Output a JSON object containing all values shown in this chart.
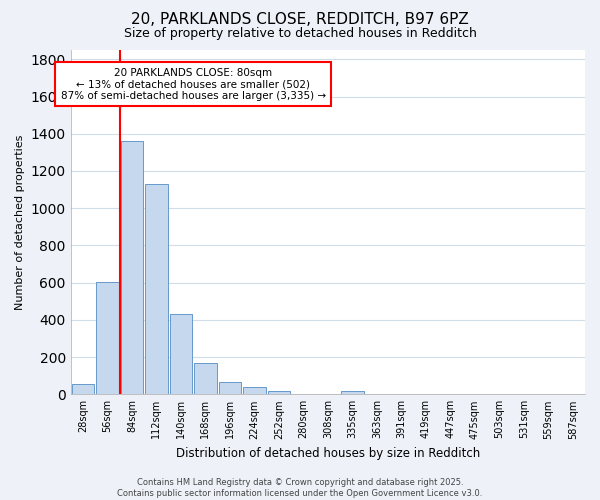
{
  "title_line1": "20, PARKLANDS CLOSE, REDDITCH, B97 6PZ",
  "title_line2": "Size of property relative to detached houses in Redditch",
  "xlabel": "Distribution of detached houses by size in Redditch",
  "ylabel": "Number of detached properties",
  "categories": [
    "28sqm",
    "56sqm",
    "84sqm",
    "112sqm",
    "140sqm",
    "168sqm",
    "196sqm",
    "224sqm",
    "252sqm",
    "280sqm",
    "308sqm",
    "335sqm",
    "363sqm",
    "391sqm",
    "419sqm",
    "447sqm",
    "475sqm",
    "503sqm",
    "531sqm",
    "559sqm",
    "587sqm"
  ],
  "values": [
    55,
    605,
    1360,
    1130,
    430,
    170,
    65,
    40,
    20,
    0,
    0,
    20,
    0,
    0,
    0,
    0,
    0,
    0,
    0,
    0,
    0
  ],
  "bar_color": "#c5d8ee",
  "bar_edge_color": "#6699cc",
  "vline_color": "red",
  "vline_position": 2,
  "annotation_text_line1": "20 PARKLANDS CLOSE: 80sqm",
  "annotation_text_line2": "← 13% of detached houses are smaller (502)",
  "annotation_text_line3": "87% of semi-detached houses are larger (3,335) →",
  "annotation_box_color": "red",
  "ylim": [
    0,
    1850
  ],
  "yticks": [
    0,
    200,
    400,
    600,
    800,
    1000,
    1200,
    1400,
    1600,
    1800
  ],
  "plot_bg_color": "#ffffff",
  "fig_bg_color": "#eef2f8",
  "grid_color": "#d0dce8",
  "footer_line1": "Contains HM Land Registry data © Crown copyright and database right 2025.",
  "footer_line2": "Contains public sector information licensed under the Open Government Licence v3.0.",
  "title_fontsize": 11,
  "subtitle_fontsize": 9,
  "tick_fontsize": 7,
  "ylabel_fontsize": 8,
  "xlabel_fontsize": 8.5,
  "footer_fontsize": 6
}
